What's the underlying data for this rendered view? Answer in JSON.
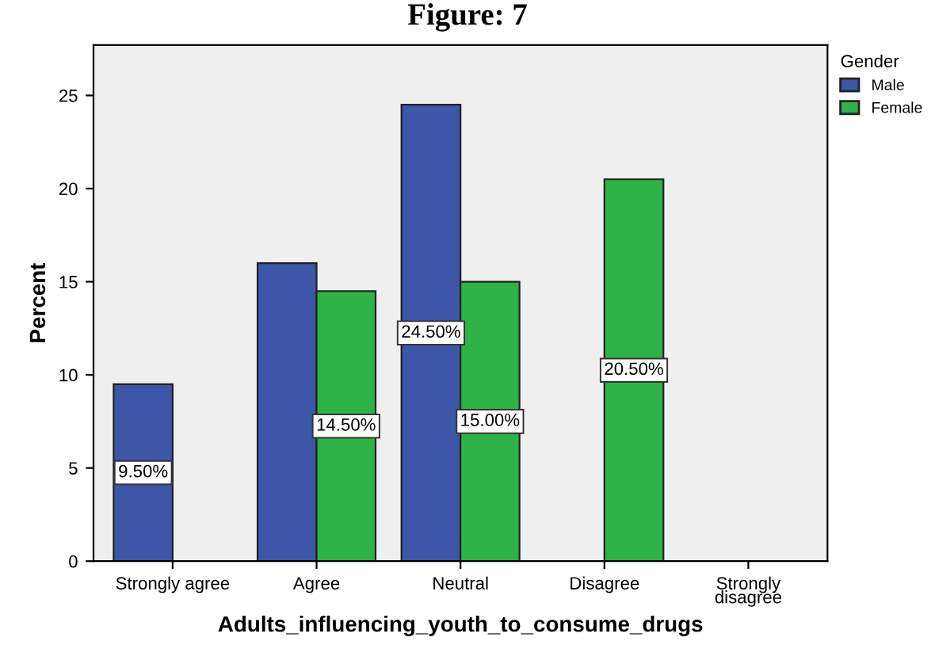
{
  "chart_data": {
    "type": "bar",
    "title": "Figure: 7",
    "xlabel": "Adults_influencing_youth_to_consume_drugs",
    "ylabel": "Percent",
    "legend_title": "Gender",
    "categories": [
      "Strongly agree",
      "Agree",
      "Neutral",
      "Disagree",
      "Strongly\ndisagree"
    ],
    "series": [
      {
        "name": "Male",
        "color": "#3d56a8",
        "values": [
          9.5,
          16,
          24.5,
          null,
          null
        ],
        "value_labels": [
          "9.50%",
          null,
          "24.50%",
          null,
          null
        ]
      },
      {
        "name": "Female",
        "color": "#2eb446",
        "values": [
          null,
          14.5,
          15,
          20.5,
          null
        ],
        "value_labels": [
          null,
          "14.50%",
          "15.00%",
          "20.50%",
          null
        ]
      }
    ],
    "ylim": [
      0,
      27.7
    ],
    "yticks": [
      0,
      5,
      10,
      15,
      20,
      25
    ],
    "grid": false,
    "legend": "top right"
  }
}
